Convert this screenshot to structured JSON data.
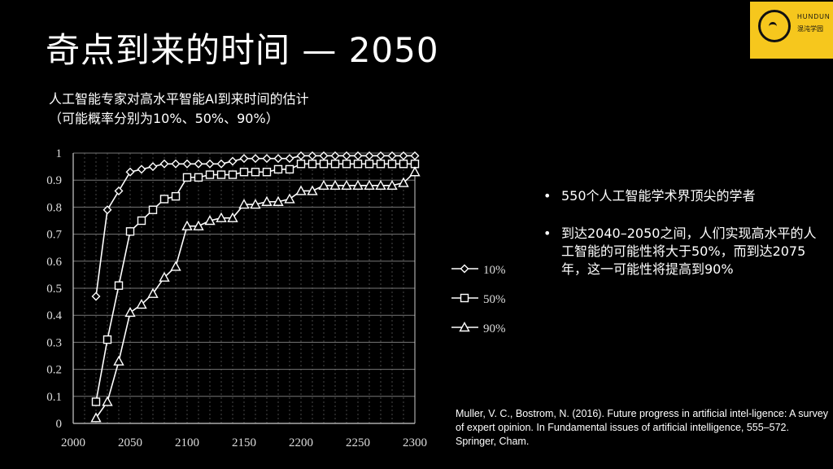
{
  "title": "奇点到来的时间 — 2050",
  "subtitle_line1": "人工智能专家对高水平智能AI到来时间的估计",
  "subtitle_line2": "（可能概率分别为10%、50%、90%）",
  "logo": {
    "brand": "HUNDUN",
    "subtext": "混沌学园"
  },
  "bullets": [
    "550个人工智能学术界顶尖的学者",
    "到达2040–2050之间，人们实现高水平的人工智能的可能性将大于50%，而到达2075年，这一可能性将提高到90%"
  ],
  "reference": "Muller, V. C., Bostrom, N. (2016). Future progress in artificial intel-ligence: A survey of expert opinion. In Fundamental issues of artificial intelligence, 555–572. Springer, Cham.",
  "colors": {
    "background": "#000000",
    "line": "#ffffff",
    "grid": "#777777",
    "logo": "#f6c71d"
  },
  "chart_data": {
    "type": "line",
    "xlabel": "",
    "ylabel": "",
    "xlim": [
      2000,
      2300
    ],
    "ylim": [
      0,
      1
    ],
    "xticks": [
      2000,
      2050,
      2100,
      2150,
      2200,
      2250,
      2300
    ],
    "yticks": [
      0,
      0.1,
      0.2,
      0.3,
      0.4,
      0.5,
      0.6,
      0.7,
      0.8,
      0.9,
      1
    ],
    "grid": true,
    "legend_position": "right",
    "series": [
      {
        "name": "10%",
        "marker": "diamond",
        "x": [
          2020,
          2030,
          2040,
          2050,
          2060,
          2070,
          2080,
          2090,
          2100,
          2110,
          2120,
          2130,
          2140,
          2150,
          2160,
          2170,
          2180,
          2190,
          2200,
          2210,
          2220,
          2230,
          2240,
          2250,
          2260,
          2270,
          2280,
          2290,
          2300
        ],
        "y": [
          0.47,
          0.79,
          0.86,
          0.93,
          0.94,
          0.95,
          0.96,
          0.96,
          0.96,
          0.96,
          0.96,
          0.96,
          0.97,
          0.98,
          0.98,
          0.98,
          0.98,
          0.98,
          0.99,
          0.99,
          0.99,
          0.99,
          0.99,
          0.99,
          0.99,
          0.99,
          0.99,
          0.99,
          0.99
        ]
      },
      {
        "name": "50%",
        "marker": "square",
        "x": [
          2020,
          2030,
          2040,
          2050,
          2060,
          2070,
          2080,
          2090,
          2100,
          2110,
          2120,
          2130,
          2140,
          2150,
          2160,
          2170,
          2180,
          2190,
          2200,
          2210,
          2220,
          2230,
          2240,
          2250,
          2260,
          2270,
          2280,
          2290,
          2300
        ],
        "y": [
          0.08,
          0.31,
          0.51,
          0.71,
          0.75,
          0.79,
          0.83,
          0.84,
          0.91,
          0.91,
          0.92,
          0.92,
          0.92,
          0.93,
          0.93,
          0.93,
          0.94,
          0.94,
          0.96,
          0.96,
          0.96,
          0.96,
          0.96,
          0.96,
          0.96,
          0.96,
          0.96,
          0.96,
          0.96
        ]
      },
      {
        "name": "90%",
        "marker": "triangle",
        "x": [
          2020,
          2030,
          2040,
          2050,
          2060,
          2070,
          2080,
          2090,
          2100,
          2110,
          2120,
          2130,
          2140,
          2150,
          2160,
          2170,
          2180,
          2190,
          2200,
          2210,
          2220,
          2230,
          2240,
          2250,
          2260,
          2270,
          2280,
          2290,
          2300
        ],
        "y": [
          0.02,
          0.08,
          0.23,
          0.41,
          0.44,
          0.48,
          0.54,
          0.58,
          0.73,
          0.73,
          0.75,
          0.76,
          0.76,
          0.81,
          0.81,
          0.82,
          0.82,
          0.83,
          0.86,
          0.86,
          0.88,
          0.88,
          0.88,
          0.88,
          0.88,
          0.88,
          0.88,
          0.89,
          0.93
        ]
      }
    ]
  }
}
